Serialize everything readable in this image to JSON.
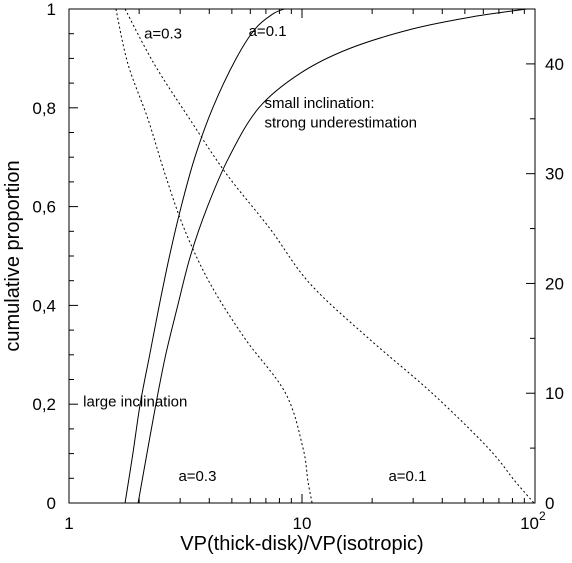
{
  "chart_data": {
    "type": "line",
    "xlabel": "VP(thick-disk)/VP(isotropic)",
    "ylabel": "cumulative proportion",
    "x_scale": "log",
    "xlim": [
      1,
      100
    ],
    "ylim": [
      0,
      1
    ],
    "y2lim": [
      0,
      45
    ],
    "grid": false,
    "legend": "none",
    "x_ticks": [
      {
        "value": 1,
        "label": "1"
      },
      {
        "value": 10,
        "label": "10"
      },
      {
        "value": 100,
        "label": "10",
        "exp": "2"
      }
    ],
    "y_ticks": [
      {
        "value": 0,
        "label": "0"
      },
      {
        "value": 0.2,
        "label": "0,2"
      },
      {
        "value": 0.4,
        "label": "0,4"
      },
      {
        "value": 0.6,
        "label": "0,6"
      },
      {
        "value": 0.8,
        "label": "0,8"
      },
      {
        "value": 1,
        "label": "1"
      }
    ],
    "y2_ticks": [
      {
        "value": 0,
        "label": "0"
      },
      {
        "value": 10,
        "label": "10"
      },
      {
        "value": 20,
        "label": "20"
      },
      {
        "value": 30,
        "label": "30"
      },
      {
        "value": 40,
        "label": "40"
      }
    ],
    "series": [
      {
        "style": "solid",
        "axis": "left",
        "points": [
          [
            1.74,
            0
          ],
          [
            1.88,
            0.1
          ],
          [
            2.02,
            0.2
          ],
          [
            2.22,
            0.3
          ],
          [
            2.44,
            0.4
          ],
          [
            2.7,
            0.5
          ],
          [
            3.03,
            0.6
          ],
          [
            3.47,
            0.7
          ],
          [
            4.14,
            0.8
          ],
          [
            5.22,
            0.9
          ],
          [
            6.3,
            0.96
          ],
          [
            7.5,
            0.99
          ],
          [
            8.4,
            1
          ]
        ]
      },
      {
        "style": "solid",
        "axis": "left",
        "points": [
          [
            1.98,
            0
          ],
          [
            2.16,
            0.1
          ],
          [
            2.36,
            0.2
          ],
          [
            2.6,
            0.3
          ],
          [
            2.93,
            0.4
          ],
          [
            3.32,
            0.5
          ],
          [
            3.93,
            0.6
          ],
          [
            4.86,
            0.7
          ],
          [
            6.53,
            0.8
          ],
          [
            9.84,
            0.87
          ],
          [
            16,
            0.92
          ],
          [
            30,
            0.96
          ],
          [
            55,
            0.985
          ],
          [
            92,
            1
          ]
        ]
      },
      {
        "style": "dotted",
        "axis": "right",
        "points": [
          [
            1.59,
            45
          ],
          [
            1.79,
            40
          ],
          [
            2.18,
            35
          ],
          [
            2.58,
            30
          ],
          [
            3.12,
            25
          ],
          [
            4.03,
            20
          ],
          [
            5.68,
            15
          ],
          [
            8.5,
            10
          ],
          [
            10.1,
            5
          ],
          [
            10.6,
            2
          ],
          [
            11.05,
            0
          ]
        ]
      },
      {
        "style": "dotted",
        "axis": "right",
        "points": [
          [
            1.74,
            45
          ],
          [
            2.32,
            40
          ],
          [
            3.29,
            35
          ],
          [
            4.73,
            30
          ],
          [
            7.28,
            25
          ],
          [
            10.8,
            20
          ],
          [
            19.3,
            15
          ],
          [
            36.2,
            10
          ],
          [
            63,
            5
          ],
          [
            82,
            2
          ],
          [
            99,
            0
          ]
        ]
      }
    ],
    "annotations": [
      {
        "text": "a=0.3",
        "at": [
          2.1,
          0.94
        ]
      },
      {
        "text": "a=0.1",
        "at": [
          5.9,
          0.945
        ]
      },
      {
        "text": "small inclination:",
        "at": [
          6.9,
          0.8
        ]
      },
      {
        "text": "strong underestimation",
        "at": [
          6.9,
          0.76
        ]
      },
      {
        "text": "large inclination",
        "at": [
          1.15,
          0.195
        ]
      },
      {
        "text": "a=0.3",
        "at": [
          2.95,
          0.045
        ]
      },
      {
        "text": "a=0.1",
        "at": [
          23.5,
          0.045
        ]
      }
    ]
  }
}
